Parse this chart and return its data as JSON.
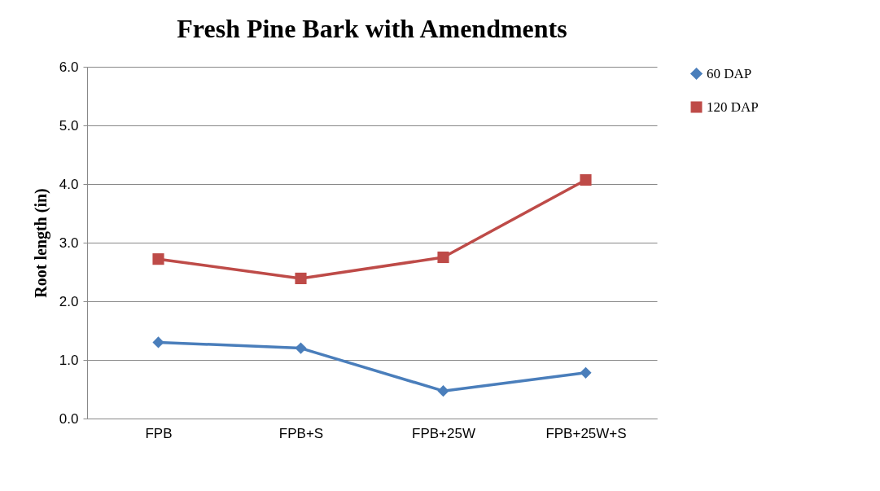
{
  "chart_data": {
    "type": "line",
    "title": "Fresh Pine Bark with Amendments",
    "ylabel": "Root length (in)",
    "categories": [
      "FPB",
      "FPB+S",
      "FPB+25W",
      "FPB+25W+S"
    ],
    "series": [
      {
        "name": "60 DAP",
        "color": "#4a7ebb",
        "marker": "diamond",
        "values": [
          1.3,
          1.2,
          0.47,
          0.78
        ]
      },
      {
        "name": "120 DAP",
        "color": "#be4b48",
        "marker": "square",
        "values": [
          2.72,
          2.39,
          2.75,
          4.07
        ]
      }
    ],
    "ylim": [
      0,
      6
    ],
    "yticks": [
      {
        "value": 0,
        "label": "0.0"
      },
      {
        "value": 1,
        "label": "1.0"
      },
      {
        "value": 2,
        "label": "2.0"
      },
      {
        "value": 3,
        "label": "3.0"
      },
      {
        "value": 4,
        "label": "4.0"
      },
      {
        "value": 5,
        "label": "5.0"
      },
      {
        "value": 6,
        "label": "6.0"
      }
    ],
    "grid": "y",
    "legend": "right",
    "line_style": "solid"
  }
}
